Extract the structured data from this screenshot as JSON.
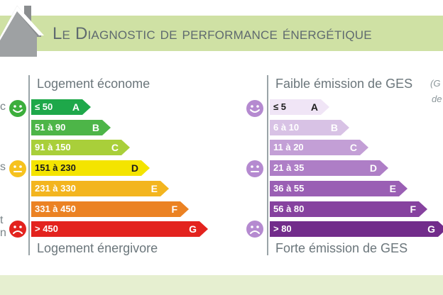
{
  "header": {
    "title": "Le Diagnostic de performance énergétique"
  },
  "energy_scale": {
    "top_label": "Logement économe",
    "bottom_label": "Logement énergivore",
    "edge_labels": [
      "c",
      "s",
      "t",
      "n"
    ],
    "classes": [
      {
        "range": "≤ 50",
        "letter": "A",
        "color": "#1ea84a"
      },
      {
        "range": "51 à 90",
        "letter": "B",
        "color": "#4db548"
      },
      {
        "range": "91 à 150",
        "letter": "C",
        "color": "#a9cf3a"
      },
      {
        "range": "151 à 230",
        "letter": "D",
        "color": "#f4e400"
      },
      {
        "range": "231 à 330",
        "letter": "E",
        "color": "#f3b51f"
      },
      {
        "range": "331 à 450",
        "letter": "F",
        "color": "#eb8223"
      },
      {
        "range": "> 450",
        "letter": "G",
        "color": "#e3231e"
      }
    ]
  },
  "ges_scale": {
    "top_label": "Faible émission de GES",
    "top_sublabel_1": "(G",
    "top_sublabel_2": "de",
    "bottom_label": "Forte émission de GES",
    "classes": [
      {
        "range": "≤ 5",
        "letter": "A",
        "color": "#f0e5f6"
      },
      {
        "range": "6 à 10",
        "letter": "B",
        "color": "#d8c2e5"
      },
      {
        "range": "11 à 20",
        "letter": "C",
        "color": "#c39fd6"
      },
      {
        "range": "21 à 35",
        "letter": "D",
        "color": "#ae7ec6"
      },
      {
        "range": "36 à 55",
        "letter": "E",
        "color": "#9a5fb4"
      },
      {
        "range": "56 à 80",
        "letter": "F",
        "color": "#86429f"
      },
      {
        "range": "> 80",
        "letter": "G",
        "color": "#722c8b"
      }
    ]
  },
  "faces": [
    {
      "name": "happy-face-icon",
      "color": "#3cae3c"
    },
    {
      "name": "neutral-face-icon",
      "color": "#f6c21e"
    },
    {
      "name": "sad-face-icon",
      "color": "#e3231e"
    },
    {
      "name": "ges-happy-face-icon",
      "color": "#b58ad0"
    },
    {
      "name": "ges-neutral-face-icon",
      "color": "#b58ad0"
    },
    {
      "name": "ges-sad-face-icon",
      "color": "#b58ad0"
    }
  ]
}
